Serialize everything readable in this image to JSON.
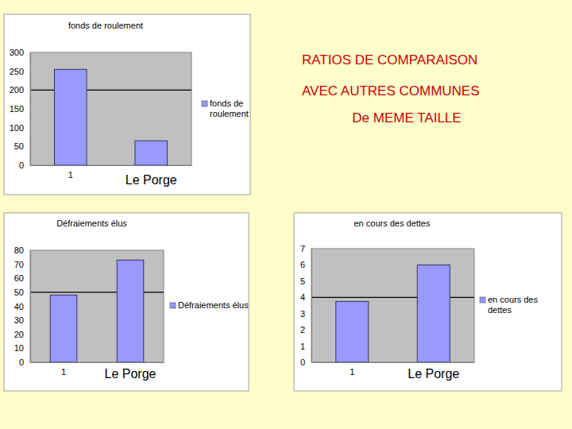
{
  "slide_title": [
    "RATIOS DE COMPARAISON",
    "AVEC AUTRES COMMUNES",
    "De MEME TAILLE"
  ],
  "chart_data": [
    {
      "type": "bar",
      "title": "fonds de roulement",
      "categories": [
        "1",
        "Le Porge"
      ],
      "series": [
        {
          "name": "fonds de roulement",
          "color": "#9999ff",
          "values": [
            255,
            65
          ]
        }
      ],
      "ylim": [
        0,
        300
      ],
      "yticks": [
        0,
        50,
        100,
        150,
        200,
        250,
        300
      ],
      "reference_line": 200,
      "grid": false,
      "legend": "right"
    },
    {
      "type": "bar",
      "title": "Défraiements élus",
      "categories": [
        "1",
        "Le Porge"
      ],
      "series": [
        {
          "name": "Défraiements élus",
          "color": "#9999ff",
          "values": [
            48,
            73
          ]
        }
      ],
      "ylim": [
        0,
        80
      ],
      "yticks": [
        0,
        10,
        20,
        30,
        40,
        50,
        60,
        70,
        80
      ],
      "reference_line": 50,
      "grid": false,
      "legend": "right"
    },
    {
      "type": "bar",
      "title": "en cours des dettes",
      "categories": [
        "1",
        "Le Porge"
      ],
      "series": [
        {
          "name": "en cours des dettes",
          "color": "#9999ff",
          "values": [
            3.75,
            6
          ]
        }
      ],
      "ylim": [
        0,
        7
      ],
      "yticks": [
        0,
        1,
        2,
        3,
        4,
        5,
        6,
        7
      ],
      "reference_line": 4,
      "grid": false,
      "legend": "right"
    }
  ]
}
